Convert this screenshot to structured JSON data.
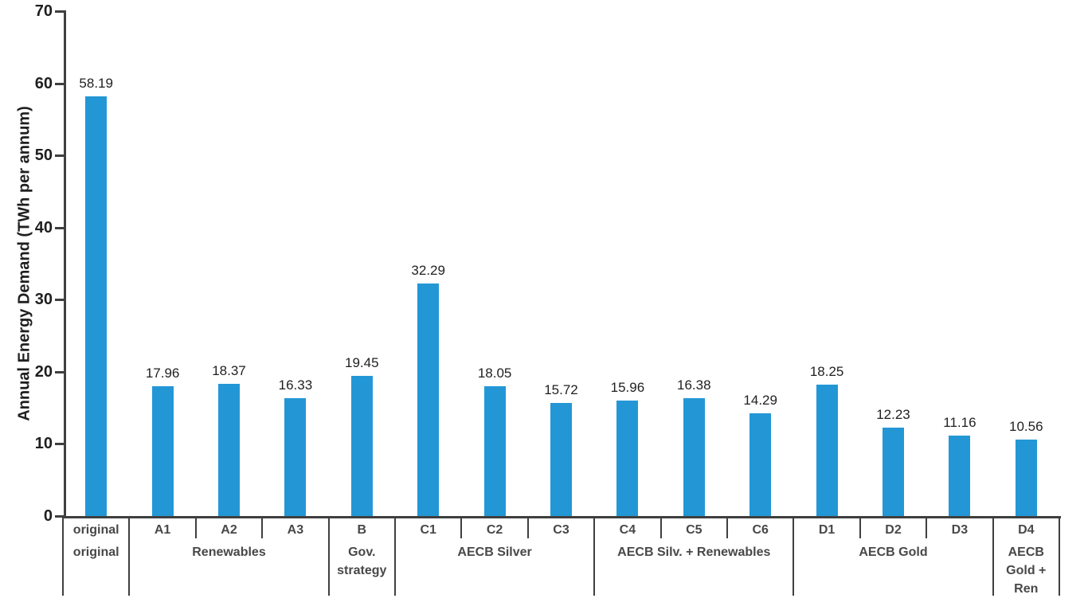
{
  "chart_data": {
    "type": "bar",
    "title": "",
    "xlabel": "",
    "ylabel": "Annual Energy Demand (TWh per annum)",
    "ylim": [
      0,
      70
    ],
    "yticks": [
      0,
      10,
      20,
      30,
      40,
      50,
      60,
      70
    ],
    "grid": false,
    "legend": null,
    "categories": [
      "original",
      "A1",
      "A2",
      "A3",
      "B",
      "C1",
      "C2",
      "C3",
      "C4",
      "C5",
      "C6",
      "D1",
      "D2",
      "D3",
      "D4"
    ],
    "values": [
      58.19,
      17.96,
      18.37,
      16.33,
      19.45,
      32.29,
      18.05,
      15.72,
      15.96,
      16.38,
      14.29,
      18.25,
      12.23,
      11.16,
      10.56
    ],
    "data_labels": [
      "58.19",
      "17.96",
      "18.37",
      "16.33",
      "19.45",
      "32.29",
      "18.05",
      "15.72",
      "15.96",
      "16.38",
      "14.29",
      "18.25",
      "12.23",
      "11.16",
      "10.56"
    ],
    "groups": [
      {
        "label": "original",
        "span": 1
      },
      {
        "label": "Renewables",
        "span": 3
      },
      {
        "label": "Gov. strategy",
        "span": 1
      },
      {
        "label": "AECB Silver",
        "span": 3
      },
      {
        "label": "AECB Silv. + Renewables",
        "span": 3
      },
      {
        "label": "AECB Gold",
        "span": 3
      },
      {
        "label": "AECB Gold + Ren",
        "span": 1
      }
    ],
    "colors": {
      "bar": "#2397D6",
      "axis": "#3F3F3F",
      "number": "#1F1F1F",
      "category": "#484848"
    }
  }
}
